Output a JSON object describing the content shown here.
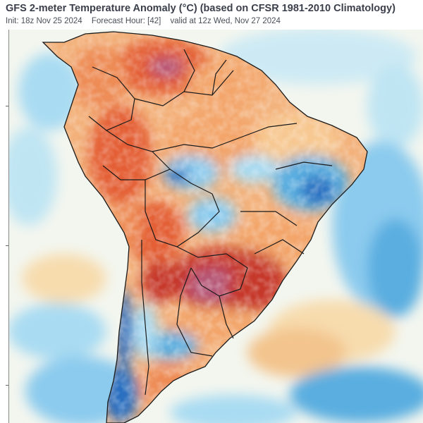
{
  "header": {
    "title": "GFS 2-meter Temperature Anomaly (°C) (based on CFSR 1981-2010 Climatology)",
    "init": "Init: 18z Nov 25 2024",
    "forecast_hour": "Forecast Hour: [42]",
    "valid": "valid at 12z Wed, Nov 27 2024"
  },
  "map": {
    "region": "South America",
    "variable": "2-meter temperature anomaly",
    "colors": {
      "ocean_neutral": "#f3f6ef",
      "light_cool": "#a9dbf2",
      "cool": "#5aaee0",
      "cold": "#2a6fc1",
      "light_warm": "#f7dcae",
      "warm": "#f3a56b",
      "hot": "#e45f34",
      "very_hot": "#c6382c",
      "extreme": "#b65a7a",
      "borders": "#1a1a1a"
    }
  }
}
